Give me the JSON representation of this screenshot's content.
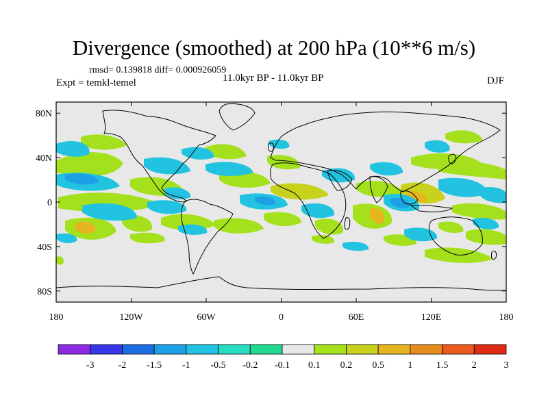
{
  "title": "Divergence (smoothed) at 200 hPa (10**6 m/s)",
  "stats": "rmsd= 0.139818 diff= 0.000926059",
  "experiment": "Expt = temkl-temel",
  "period": "11.0kyr BP - 11.0kyr BP",
  "season": "DJF",
  "y_axis": {
    "ticks": [
      {
        "label": "80N",
        "lat": 80
      },
      {
        "label": "40N",
        "lat": 40
      },
      {
        "label": "0",
        "lat": 0
      },
      {
        "label": "40S",
        "lat": -40
      },
      {
        "label": "80S",
        "lat": -80
      }
    ]
  },
  "x_axis": {
    "ticks": [
      {
        "label": "180",
        "lon": -180
      },
      {
        "label": "120W",
        "lon": -120
      },
      {
        "label": "60W",
        "lon": -60
      },
      {
        "label": "0",
        "lon": 0
      },
      {
        "label": "60E",
        "lon": 60
      },
      {
        "label": "120E",
        "lon": 120
      },
      {
        "label": "180",
        "lon": 180
      }
    ]
  },
  "colorbar": {
    "labels": [
      "-3",
      "-2",
      "-1.5",
      "-1",
      "-0.5",
      "-0.2",
      "-0.1",
      "0.1",
      "0.2",
      "0.5",
      "1",
      "1.5",
      "2",
      "3"
    ],
    "colors": [
      "#8a2be2",
      "#3636e8",
      "#1e6de0",
      "#1ea0e6",
      "#22c3e0",
      "#28dcc2",
      "#20d890",
      "#e8e8e8",
      "#a4e11c",
      "#c8d21c",
      "#e6b41e",
      "#e68c1e",
      "#ea5a1c",
      "#e02a16"
    ]
  },
  "colors": {
    "land_fill": "#e8e8e8",
    "coastline": "#000000",
    "frame": "#000000"
  }
}
